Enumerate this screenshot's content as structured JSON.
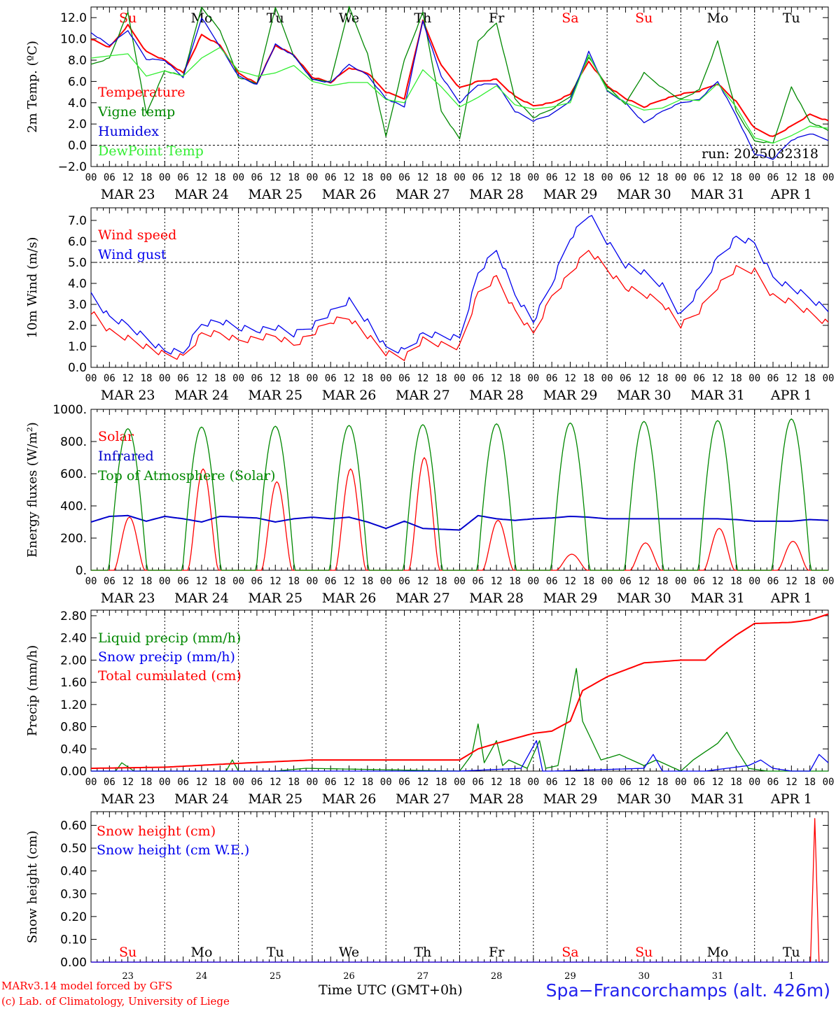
{
  "days": {
    "weekday_labels": [
      "Su",
      "Mo",
      "Tu",
      "We",
      "Th",
      "Fr",
      "Sa",
      "Su",
      "Mo",
      "Tu"
    ],
    "weekday_colors": [
      "#ff0000",
      "#000000",
      "#000000",
      "#000000",
      "#000000",
      "#000000",
      "#ff0000",
      "#ff0000",
      "#000000",
      "#000000"
    ],
    "date_labels": [
      "MAR 23",
      "MAR 24",
      "MAR 25",
      "MAR 26",
      "MAR 27",
      "MAR 28",
      "MAR 29",
      "MAR 30",
      "MAR 31",
      "APR  1"
    ],
    "day_numbers": [
      "23",
      "24",
      "25",
      "26",
      "27",
      "28",
      "29",
      "30",
      "31",
      "1"
    ],
    "hour_ticks": [
      "00",
      "06",
      "12",
      "18"
    ],
    "last_tick": "00"
  },
  "footer": {
    "model": "MARv3.14 model forced by GFS",
    "lab": "(c) Lab. of Climatology, University of Liege",
    "axis": "Time UTC (GMT+0h)",
    "station": "Spa−Francorchamps (alt. 426m)"
  },
  "chart_data": [
    {
      "id": "temp",
      "type": "line",
      "ylabel": "2m Temp. (ºC)",
      "ylim": [
        -2,
        13
      ],
      "yticks": [
        "−2.0",
        "0.0",
        "2.0",
        "4.0",
        "6.0",
        "8.0",
        "10.0",
        "12.0"
      ],
      "ytick_values": [
        -2,
        0,
        2,
        4,
        6,
        8,
        10,
        12
      ],
      "hline": 0,
      "annotation": "run: 2025032318",
      "x": [
        0,
        6,
        12,
        18,
        24,
        30,
        36,
        42,
        48,
        54,
        60,
        66,
        72,
        78,
        84,
        90,
        96,
        102,
        108,
        114,
        120,
        126,
        132,
        138,
        144,
        150,
        156,
        162,
        168,
        174,
        180,
        186,
        192,
        198,
        204,
        210,
        216,
        222,
        228,
        234,
        240
      ],
      "series": [
        {
          "name": "Temperature",
          "color": "#ff0000",
          "values": [
            10.0,
            9.2,
            11.3,
            8.8,
            8.0,
            6.8,
            10.4,
            9.4,
            6.8,
            5.8,
            9.4,
            8.5,
            6.4,
            5.9,
            7.3,
            6.8,
            5.0,
            4.4,
            11.7,
            7.5,
            5.4,
            6.0,
            6.2,
            4.6,
            3.7,
            4.0,
            4.8,
            7.9,
            5.6,
            4.4,
            3.6,
            4.3,
            4.8,
            5.1,
            5.8,
            4.1,
            1.6,
            0.8,
            1.8,
            2.9,
            2.3
          ]
        },
        {
          "name": "Vigne temp",
          "color": "#008800",
          "values": [
            7.6,
            8.2,
            12.5,
            3.0,
            7.0,
            6.5,
            13.0,
            10.8,
            6.4,
            5.8,
            13.0,
            8.4,
            6.2,
            6.0,
            13.0,
            8.6,
            0.8,
            8.0,
            12.5,
            3.2,
            0.6,
            9.8,
            11.5,
            4.4,
            2.6,
            3.4,
            4.6,
            8.3,
            5.5,
            3.9,
            6.8,
            5.4,
            4.3,
            5.2,
            9.8,
            3.2,
            0.4,
            0.2,
            5.5,
            2.2,
            1.4
          ]
        },
        {
          "name": "Humidex",
          "color": "#0000dd",
          "values": [
            10.6,
            9.4,
            10.8,
            8.1,
            8.0,
            6.4,
            12.0,
            9.3,
            6.5,
            5.7,
            9.5,
            8.4,
            6.2,
            5.9,
            7.6,
            6.6,
            4.4,
            3.6,
            11.7,
            6.5,
            4.0,
            5.7,
            5.8,
            3.2,
            2.3,
            2.9,
            4.2,
            8.8,
            5.1,
            4.0,
            2.1,
            3.2,
            4.0,
            4.3,
            6.0,
            2.8,
            -0.8,
            -1.3,
            0.5,
            1.1,
            0.5
          ]
        },
        {
          "name": "DewPoint Temp",
          "color": "#33ee33",
          "values": [
            8.2,
            8.4,
            8.6,
            6.5,
            7.0,
            6.5,
            8.2,
            9.2,
            7.0,
            6.5,
            6.8,
            7.5,
            6.0,
            5.6,
            5.9,
            5.9,
            4.3,
            4.0,
            7.1,
            5.5,
            3.6,
            4.5,
            5.6,
            3.8,
            3.4,
            3.6,
            4.0,
            8.5,
            5.2,
            4.0,
            3.3,
            3.5,
            4.3,
            4.2,
            5.8,
            3.6,
            0.7,
            0.2,
            0.9,
            1.8,
            1.6
          ]
        }
      ]
    },
    {
      "id": "wind",
      "type": "line",
      "ylabel": "10m Wind (m/s)",
      "ylim": [
        0,
        7.6
      ],
      "yticks": [
        "0.0",
        "1.0",
        "2.0",
        "3.0",
        "4.0",
        "5.0",
        "6.0",
        "7.0"
      ],
      "ytick_values": [
        0,
        1,
        2,
        3,
        4,
        5,
        6,
        7
      ],
      "hline": 5,
      "x": [
        0,
        6,
        12,
        18,
        24,
        30,
        36,
        42,
        48,
        54,
        60,
        66,
        72,
        78,
        84,
        90,
        96,
        102,
        108,
        114,
        120,
        126,
        132,
        138,
        144,
        150,
        156,
        162,
        168,
        174,
        180,
        186,
        192,
        198,
        204,
        210,
        216,
        222,
        228,
        234,
        240
      ],
      "series": [
        {
          "name": "Wind speed",
          "color": "#ff0000",
          "values": [
            2.7,
            1.7,
            1.4,
            1.0,
            0.6,
            0.5,
            1.6,
            1.6,
            1.3,
            1.4,
            1.5,
            1.1,
            1.6,
            2.2,
            2.4,
            1.5,
            0.7,
            0.5,
            1.3,
            1.1,
            1.0,
            3.5,
            4.3,
            2.7,
            1.6,
            3.4,
            4.5,
            5.6,
            4.7,
            3.8,
            3.5,
            3.1,
            2.0,
            2.7,
            3.9,
            4.7,
            4.6,
            3.4,
            3.1,
            2.6,
            2.1
          ]
        },
        {
          "name": "Wind gust",
          "color": "#0000ee",
          "values": [
            3.5,
            2.4,
            2.0,
            1.4,
            0.8,
            0.7,
            2.1,
            2.2,
            1.9,
            1.8,
            1.9,
            1.6,
            2.0,
            2.6,
            3.2,
            2.2,
            0.9,
            0.8,
            1.6,
            1.5,
            1.4,
            4.5,
            5.6,
            3.5,
            2.2,
            4.0,
            6.2,
            7.3,
            6.0,
            4.9,
            4.5,
            3.9,
            2.5,
            3.7,
            5.2,
            6.2,
            5.9,
            4.3,
            3.8,
            3.3,
            2.7
          ]
        }
      ]
    },
    {
      "id": "energy",
      "type": "line",
      "ylabel": "Energy fluxes (W/m²)",
      "ylim": [
        0,
        1000
      ],
      "yticks": [
        "0.",
        "200.",
        "400.",
        "600.",
        "800.",
        "1000."
      ],
      "ytick_values": [
        0,
        200,
        400,
        600,
        800,
        1000
      ],
      "series": [
        {
          "name": "Solar",
          "color": "#ff0000",
          "day_peaks": [
            330,
            630,
            550,
            630,
            700,
            310,
            100,
            170,
            260,
            180
          ]
        },
        {
          "name": "Infrared",
          "color": "#0000cc",
          "x": [
            0,
            6,
            12,
            18,
            24,
            30,
            36,
            42,
            48,
            54,
            60,
            66,
            72,
            78,
            84,
            90,
            96,
            102,
            108,
            114,
            120,
            126,
            132,
            138,
            144,
            150,
            156,
            162,
            168,
            174,
            180,
            186,
            192,
            198,
            204,
            210,
            216,
            222,
            228,
            234,
            240
          ],
          "values": [
            300,
            335,
            340,
            305,
            335,
            320,
            300,
            335,
            330,
            325,
            300,
            320,
            330,
            320,
            330,
            300,
            260,
            305,
            260,
            255,
            250,
            340,
            320,
            310,
            320,
            325,
            335,
            330,
            320,
            320,
            320,
            320,
            320,
            320,
            320,
            315,
            305,
            305,
            305,
            315,
            310
          ]
        },
        {
          "name": "Top of Atmosphere (Solar)",
          "color": "#008800",
          "day_peaks": [
            880,
            890,
            895,
            900,
            905,
            910,
            915,
            925,
            930,
            940
          ]
        }
      ]
    },
    {
      "id": "precip",
      "type": "line",
      "ylabel": "Precip (mm/h)",
      "ylim": [
        0,
        2.9
      ],
      "yticks": [
        "0.00",
        "0.40",
        "0.80",
        "1.20",
        "1.60",
        "2.00",
        "2.40",
        "2.80"
      ],
      "ytick_values": [
        0,
        0.4,
        0.8,
        1.2,
        1.6,
        2.0,
        2.4,
        2.8
      ],
      "series": [
        {
          "name": "Liquid precip (mm/h)",
          "color": "#008800",
          "x": [
            0,
            8,
            10,
            14,
            16,
            44,
            46,
            48,
            60,
            70,
            120,
            124,
            126,
            128,
            132,
            134,
            136,
            142,
            146,
            148,
            152,
            158,
            160,
            166,
            172,
            180,
            184,
            192,
            196,
            204,
            207,
            210,
            214,
            220,
            230,
            240
          ],
          "values": [
            0,
            0,
            0.15,
            0,
            0,
            0,
            0.2,
            0,
            0,
            0.05,
            0,
            0.3,
            0.85,
            0.15,
            0.55,
            0.1,
            0.2,
            0.05,
            0.55,
            0.05,
            0.1,
            1.85,
            0.9,
            0.2,
            0.3,
            0.1,
            0.2,
            0,
            0.2,
            0.5,
            0.7,
            0.4,
            0.05,
            0,
            0,
            0
          ]
        },
        {
          "name": "Snow precip (mm/h)",
          "color": "#0000ee",
          "x": [
            0,
            120,
            140,
            145,
            147,
            150,
            180,
            183,
            186,
            200,
            214,
            218,
            222,
            228,
            234,
            237,
            240
          ],
          "values": [
            0,
            0,
            0.05,
            0.55,
            0,
            0,
            0.05,
            0.3,
            0,
            0,
            0.1,
            0.2,
            0.05,
            0,
            0,
            0.3,
            0.15
          ]
        },
        {
          "name": "Total cumulated (cm)",
          "color": "#ff0000",
          "x": [
            0,
            24,
            48,
            72,
            96,
            120,
            126,
            132,
            144,
            150,
            156,
            160,
            168,
            180,
            192,
            200,
            204,
            210,
            216,
            228,
            234,
            240
          ],
          "values": [
            0.05,
            0.07,
            0.14,
            0.2,
            0.2,
            0.2,
            0.4,
            0.5,
            0.68,
            0.72,
            0.9,
            1.45,
            1.7,
            1.95,
            2.0,
            2.0,
            2.2,
            2.45,
            2.66,
            2.68,
            2.72,
            2.83
          ]
        }
      ]
    },
    {
      "id": "snow",
      "type": "line",
      "ylabel": "Snow height (cm)",
      "ylim": [
        0,
        0.66
      ],
      "yticks": [
        "0.00",
        "0.10",
        "0.20",
        "0.30",
        "0.40",
        "0.50",
        "0.60"
      ],
      "ytick_values": [
        0,
        0.1,
        0.2,
        0.3,
        0.4,
        0.5,
        0.6
      ],
      "series": [
        {
          "name": "Snow height (cm)",
          "color": "#ff0000",
          "x": [
            0,
            234.2,
            235.6,
            237.0,
            240
          ],
          "values": [
            0,
            0,
            0.63,
            0,
            0
          ]
        },
        {
          "name": "Snow height (cm W.E.)",
          "color": "#0000ee",
          "x": [
            0,
            240
          ],
          "values": [
            0,
            0
          ]
        }
      ]
    }
  ]
}
